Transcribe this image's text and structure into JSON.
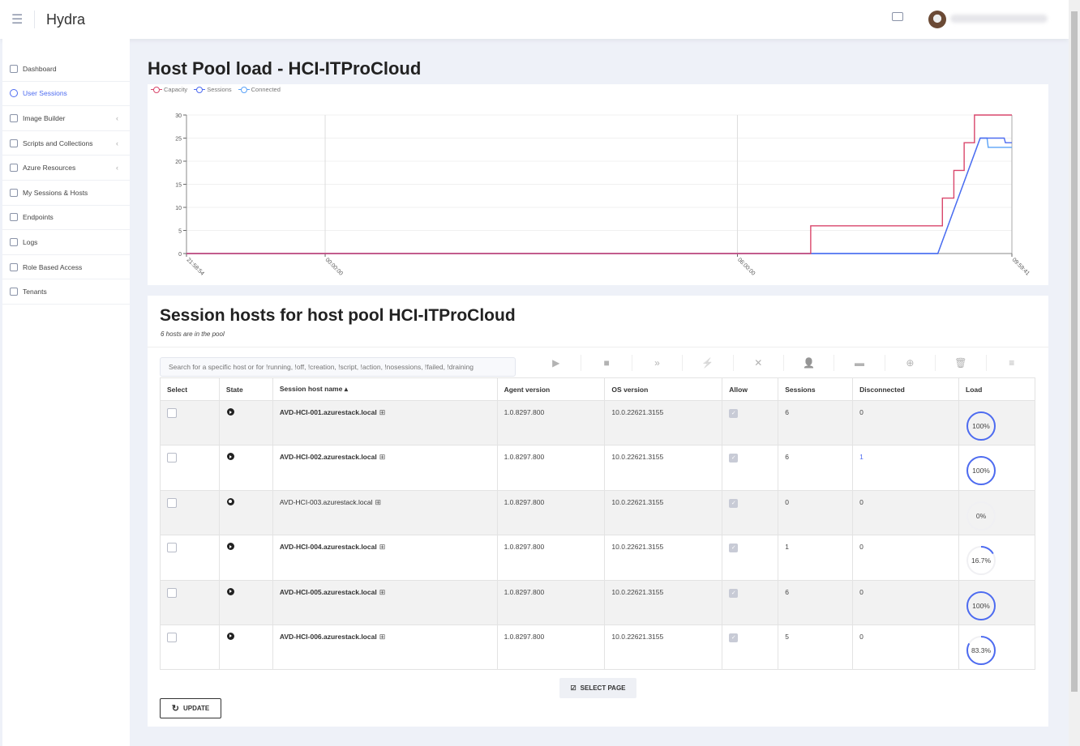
{
  "app": {
    "title": "Hydra",
    "icons": {
      "menu": "hamburger-icon",
      "folder": "folder-icon",
      "avatar": "user-avatar"
    }
  },
  "sidebar": {
    "items": [
      {
        "label": "Dashboard",
        "icon": "pie-chart-icon"
      },
      {
        "label": "User Sessions",
        "icon": "users-icon",
        "active": true
      },
      {
        "label": "Image Builder",
        "icon": "save-icon",
        "chevron": true
      },
      {
        "label": "Scripts and Collections",
        "icon": "archive-icon",
        "chevron": true
      },
      {
        "label": "Azure Resources",
        "icon": "archive-icon",
        "chevron": true
      },
      {
        "label": "My Sessions & Hosts",
        "icon": "monitor-icon"
      },
      {
        "label": "Endpoints",
        "icon": "cast-icon"
      },
      {
        "label": "Logs",
        "icon": "book-icon"
      },
      {
        "label": "Role Based Access",
        "icon": "shield-icon"
      },
      {
        "label": "Tenants",
        "icon": "gear-icon"
      }
    ]
  },
  "load_section": {
    "title": "Host Pool load - HCI-ITProCloud"
  },
  "chart_data": {
    "type": "line",
    "legend": [
      "Capacity",
      "Sessions",
      "Connected"
    ],
    "legend_placement": "top-left",
    "colors": {
      "Capacity": "#d9466b",
      "Sessions": "#4d6bf0",
      "Connected": "#5aa2f7"
    },
    "x_ticks": [
      "21:58:54",
      "00:00:00",
      "06:00:00",
      "09:59:41"
    ],
    "xlim": [
      "21:58:54",
      "09:59:41"
    ],
    "y_ticks": [
      0,
      5,
      10,
      15,
      20,
      25,
      30
    ],
    "ylim": [
      0,
      30
    ],
    "series": [
      {
        "name": "Capacity",
        "points": [
          [
            "21:58:54",
            0
          ],
          [
            "07:04",
            0
          ],
          [
            "07:04",
            6
          ],
          [
            "08:59",
            6
          ],
          [
            "08:59",
            12
          ],
          [
            "09:09",
            12
          ],
          [
            "09:09",
            18
          ],
          [
            "09:18",
            18
          ],
          [
            "09:18",
            24
          ],
          [
            "09:27",
            24
          ],
          [
            "09:27",
            30
          ],
          [
            "09:59:41",
            30
          ]
        ]
      },
      {
        "name": "Sessions",
        "points": [
          [
            "21:58:54",
            0
          ],
          [
            "08:55",
            0
          ],
          [
            "09:32",
            25
          ],
          [
            "09:53",
            25
          ],
          [
            "09:54",
            24
          ],
          [
            "09:59:41",
            24
          ]
        ]
      },
      {
        "name": "Connected",
        "points": [
          [
            "21:58:54",
            0
          ],
          [
            "08:55",
            0
          ],
          [
            "09:32",
            25
          ],
          [
            "09:38",
            25
          ],
          [
            "09:39",
            23
          ],
          [
            "09:59:41",
            23
          ]
        ]
      }
    ]
  },
  "hosts_section": {
    "title": "Session hosts for host pool HCI-ITProCloud",
    "subtitle": "6 hosts are in the pool",
    "search_placeholder": "Search for a specific host or for !running, !off, !creation, !script, !action, !nosessions, !failed, !draining",
    "toolbar": [
      "play-icon",
      "stop-icon",
      "chevrons-right-icon",
      "lightning-icon",
      "no-lightning-icon",
      "user-plus-icon",
      "message-icon",
      "add-icon",
      "trash-icon",
      "menu-icon"
    ],
    "columns": [
      "Select",
      "State",
      "Session host name ▴",
      "Agent version",
      "OS version",
      "Allow",
      "Sessions",
      "Disconnected",
      "Load"
    ],
    "rows": [
      {
        "name": "AVD-HCI-001.azurestack.local",
        "running": true,
        "agent": "1.0.8297.800",
        "os": "10.0.22621.3155",
        "sessions": "6",
        "disconnected": "0",
        "load": "100%",
        "load_value": 100
      },
      {
        "name": "AVD-HCI-002.azurestack.local",
        "running": true,
        "agent": "1.0.8297.800",
        "os": "10.0.22621.3155",
        "sessions": "6",
        "disconnected": "1",
        "load": "100%",
        "load_value": 100
      },
      {
        "name": "AVD-HCI-003.azurestack.local",
        "running": false,
        "agent": "1.0.8297.800",
        "os": "10.0.22621.3155",
        "sessions": "0",
        "disconnected": "0",
        "load": "0%",
        "load_value": 0
      },
      {
        "name": "AVD-HCI-004.azurestack.local",
        "running": true,
        "agent": "1.0.8297.800",
        "os": "10.0.22621.3155",
        "sessions": "1",
        "disconnected": "0",
        "load": "16.7%",
        "load_value": 16.7
      },
      {
        "name": "AVD-HCI-005.azurestack.local",
        "running": true,
        "agent": "1.0.8297.800",
        "os": "10.0.22621.3155",
        "sessions": "6",
        "disconnected": "0",
        "load": "100%",
        "load_value": 100
      },
      {
        "name": "AVD-HCI-006.azurestack.local",
        "running": true,
        "agent": "1.0.8297.800",
        "os": "10.0.22621.3155",
        "sessions": "5",
        "disconnected": "0",
        "load": "83.3%",
        "load_value": 83.3
      }
    ],
    "select_page": "SELECT PAGE",
    "update": "UPDATE"
  },
  "colors": {
    "accent": "#4d6bf0",
    "ring_track": "#f0f0f3"
  }
}
